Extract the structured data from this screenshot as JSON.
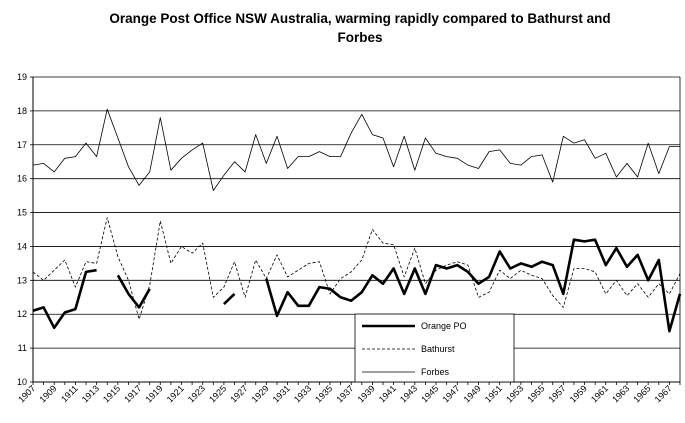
{
  "chart_data": {
    "type": "line",
    "title": "Orange Post Office NSW Australia, warming rapidly compared to Bathurst and\nForbes",
    "xlabel": "",
    "ylabel": "",
    "ylim": [
      10,
      19
    ],
    "xlim": [
      1907,
      1968
    ],
    "grid": "horizontal",
    "legend_position": "bottom-center",
    "x_tick_labels": [
      "1907",
      "1909",
      "1911",
      "1913",
      "1915",
      "1917",
      "1919",
      "1921",
      "1923",
      "1925",
      "1927",
      "1929",
      "1931",
      "1933",
      "1935",
      "1937",
      "1939",
      "1941",
      "1943",
      "1945",
      "1947",
      "1949",
      "1951",
      "1953",
      "1955",
      "1957",
      "1959",
      "1961",
      "1963",
      "1965",
      "1967"
    ],
    "y_tick_labels": [
      "10",
      "11",
      "12",
      "13",
      "14",
      "15",
      "16",
      "17",
      "18",
      "19"
    ],
    "x": [
      1907,
      1908,
      1909,
      1910,
      1911,
      1912,
      1913,
      1914,
      1915,
      1916,
      1917,
      1918,
      1919,
      1920,
      1921,
      1922,
      1923,
      1924,
      1925,
      1926,
      1927,
      1928,
      1929,
      1930,
      1931,
      1932,
      1933,
      1934,
      1935,
      1936,
      1937,
      1938,
      1939,
      1940,
      1941,
      1942,
      1943,
      1944,
      1945,
      1946,
      1947,
      1948,
      1949,
      1950,
      1951,
      1952,
      1953,
      1954,
      1955,
      1956,
      1957,
      1958,
      1959,
      1960,
      1961,
      1962,
      1963,
      1964,
      1965,
      1966,
      1967,
      1968
    ],
    "series": [
      {
        "name": "Orange PO",
        "color": "#000000",
        "style": "solid-thick",
        "values": [
          12.1,
          12.2,
          11.6,
          12.05,
          12.15,
          13.25,
          13.3,
          null,
          13.15,
          12.6,
          12.2,
          12.75,
          null,
          null,
          null,
          null,
          null,
          null,
          12.3,
          12.6,
          null,
          null,
          13.05,
          11.95,
          12.65,
          12.25,
          12.25,
          12.8,
          12.75,
          12.5,
          12.4,
          12.65,
          13.15,
          12.9,
          13.35,
          12.6,
          13.35,
          12.6,
          13.45,
          13.35,
          13.45,
          13.25,
          12.9,
          13.1,
          13.85,
          13.35,
          13.5,
          13.4,
          13.55,
          13.45,
          12.6,
          14.2,
          14.15,
          14.2,
          13.45,
          13.95,
          13.4,
          13.75,
          13.0,
          13.6,
          11.5,
          12.6
        ]
      },
      {
        "name": "Bathurst",
        "color": "#000000",
        "style": "dashed",
        "values": [
          13.25,
          13.0,
          13.3,
          13.6,
          12.8,
          13.55,
          13.5,
          14.85,
          13.7,
          13.0,
          11.85,
          12.85,
          14.75,
          13.5,
          14.0,
          13.8,
          14.1,
          12.5,
          12.8,
          13.55,
          12.5,
          13.6,
          13.05,
          13.75,
          13.1,
          13.3,
          13.5,
          13.55,
          12.6,
          13.05,
          13.25,
          13.6,
          14.5,
          14.1,
          14.05,
          13.1,
          13.95,
          12.9,
          13.3,
          13.45,
          13.55,
          13.45,
          12.5,
          12.65,
          13.3,
          13.05,
          13.3,
          13.15,
          13.05,
          12.55,
          12.2,
          13.35,
          13.35,
          13.25,
          12.6,
          13.0,
          12.55,
          12.9,
          12.5,
          12.9,
          12.6,
          13.2
        ]
      },
      {
        "name": "Forbes",
        "color": "#000000",
        "style": "solid-thin",
        "values": [
          16.4,
          16.45,
          16.2,
          16.6,
          16.65,
          17.05,
          16.65,
          18.05,
          17.2,
          16.35,
          15.8,
          16.2,
          17.8,
          16.25,
          16.6,
          16.85,
          17.05,
          15.65,
          16.1,
          16.5,
          16.2,
          17.3,
          16.45,
          17.25,
          16.3,
          16.65,
          16.65,
          16.8,
          16.65,
          16.65,
          17.35,
          17.9,
          17.3,
          17.2,
          16.35,
          17.25,
          16.25,
          17.2,
          16.75,
          16.65,
          16.6,
          16.4,
          16.3,
          16.8,
          16.85,
          16.45,
          16.4,
          16.65,
          16.7,
          15.9,
          17.25,
          17.05,
          17.15,
          16.6,
          16.75,
          16.05,
          16.45,
          16.05,
          17.05,
          16.15,
          16.95,
          16.95
        ]
      }
    ]
  }
}
